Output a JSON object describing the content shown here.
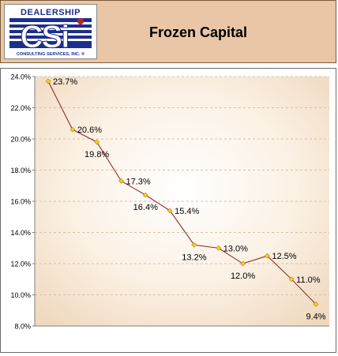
{
  "header": {
    "title": "Frozen Capital",
    "logo": {
      "top_text": "DEALERSHIP",
      "letters": "CSi",
      "bottom_text": "CONSULTING SERVICES, INC. ®"
    }
  },
  "colors": {
    "header_bg": "#e9c6a5",
    "line": "#8b1a1a",
    "marker": "#f2d21e",
    "logo_blue": "#1d2f8c",
    "logo_red": "#c0202a"
  },
  "chart_data": {
    "type": "line",
    "title": "",
    "xlabel": "",
    "ylabel": "",
    "ylim": [
      8.0,
      24.0
    ],
    "yticks": [
      "8.0%",
      "10.0%",
      "12.0%",
      "14.0%",
      "16.0%",
      "18.0%",
      "20.0%",
      "22.0%",
      "24.0%"
    ],
    "grid": true,
    "x": [
      1,
      2,
      3,
      4,
      5,
      6,
      7,
      8,
      9,
      10,
      11,
      12
    ],
    "values": [
      23.7,
      20.6,
      19.8,
      17.3,
      16.4,
      15.4,
      13.2,
      13.0,
      12.0,
      12.5,
      11.0,
      9.4
    ],
    "labels": [
      "23.7%",
      "20.6%",
      "19.8%",
      "17.3%",
      "16.4%",
      "15.4%",
      "13.2%",
      "13.0%",
      "12.0%",
      "12.5%",
      "11.0%",
      "9.4%"
    ]
  }
}
